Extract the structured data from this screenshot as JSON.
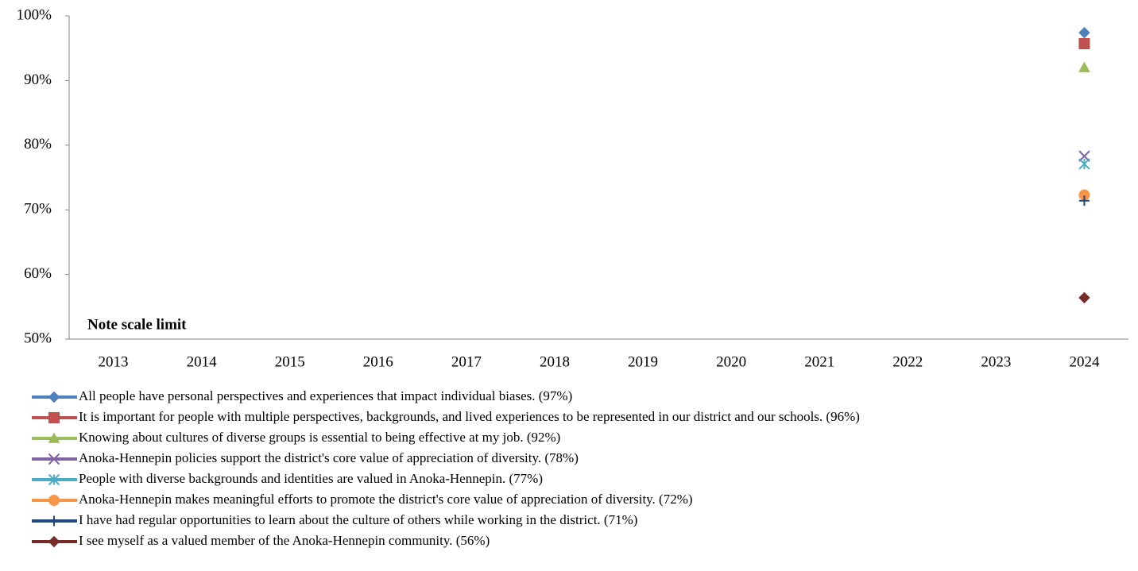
{
  "chart_data": {
    "type": "line",
    "categories": [
      "2013",
      "2014",
      "2015",
      "2016",
      "2017",
      "2018",
      "2019",
      "2020",
      "2021",
      "2022",
      "2023",
      "2024"
    ],
    "ylim": [
      50,
      100
    ],
    "yticks": [
      {
        "value": 50,
        "label": "50%"
      },
      {
        "value": 60,
        "label": "60%"
      },
      {
        "value": 70,
        "label": "70%"
      },
      {
        "value": 80,
        "label": "80%"
      },
      {
        "value": 90,
        "label": "90%"
      },
      {
        "value": 100,
        "label": "100%"
      }
    ],
    "annotation": "Note scale limit",
    "annotation_color": "#c00000",
    "series": [
      {
        "name": "All people have personal perspectives and experiences that impact individual biases. (97%)",
        "color": "#4f81bd",
        "marker": "diamond",
        "values": [
          null,
          null,
          null,
          null,
          null,
          null,
          null,
          null,
          null,
          null,
          null,
          97.4
        ]
      },
      {
        "name": "It is important for people with multiple perspectives, backgrounds, and lived experiences to be represented in our district and our schools. (96%)",
        "color": "#c0504d",
        "marker": "square",
        "values": [
          null,
          null,
          null,
          null,
          null,
          null,
          null,
          null,
          null,
          null,
          null,
          95.7
        ]
      },
      {
        "name": "Knowing about cultures of diverse groups is essential to being effective at my job. (92%)",
        "color": "#9bbb59",
        "marker": "triangle",
        "values": [
          null,
          null,
          null,
          null,
          null,
          null,
          null,
          null,
          null,
          null,
          null,
          92.0
        ]
      },
      {
        "name": "Anoka-Hennepin policies support the district's core value of appreciation of diversity. (78%)",
        "color": "#8064a2",
        "marker": "x",
        "values": [
          null,
          null,
          null,
          null,
          null,
          null,
          null,
          null,
          null,
          null,
          null,
          78.3
        ]
      },
      {
        "name": "People with diverse backgrounds and identities are valued in Anoka-Hennepin. (77%)",
        "color": "#4bacc6",
        "marker": "asterisk",
        "values": [
          null,
          null,
          null,
          null,
          null,
          null,
          null,
          null,
          null,
          null,
          null,
          77.1
        ]
      },
      {
        "name": "Anoka-Hennepin makes meaningful efforts to promote the district's core value of appreciation of diversity. (72%)",
        "color": "#f79646",
        "marker": "circle",
        "values": [
          null,
          null,
          null,
          null,
          null,
          null,
          null,
          null,
          null,
          null,
          null,
          72.3
        ]
      },
      {
        "name": "I have had regular opportunities to learn about the culture of others while working in the district. (71%)",
        "color": "#1f497d",
        "marker": "plus",
        "values": [
          null,
          null,
          null,
          null,
          null,
          null,
          null,
          null,
          null,
          null,
          null,
          71.4
        ]
      },
      {
        "name": "I see myself as a valued member of the Anoka-Hennepin community. (56%)",
        "color": "#772c2a",
        "marker": "diamond",
        "values": [
          null,
          null,
          null,
          null,
          null,
          null,
          null,
          null,
          null,
          null,
          null,
          56.4
        ]
      }
    ]
  }
}
